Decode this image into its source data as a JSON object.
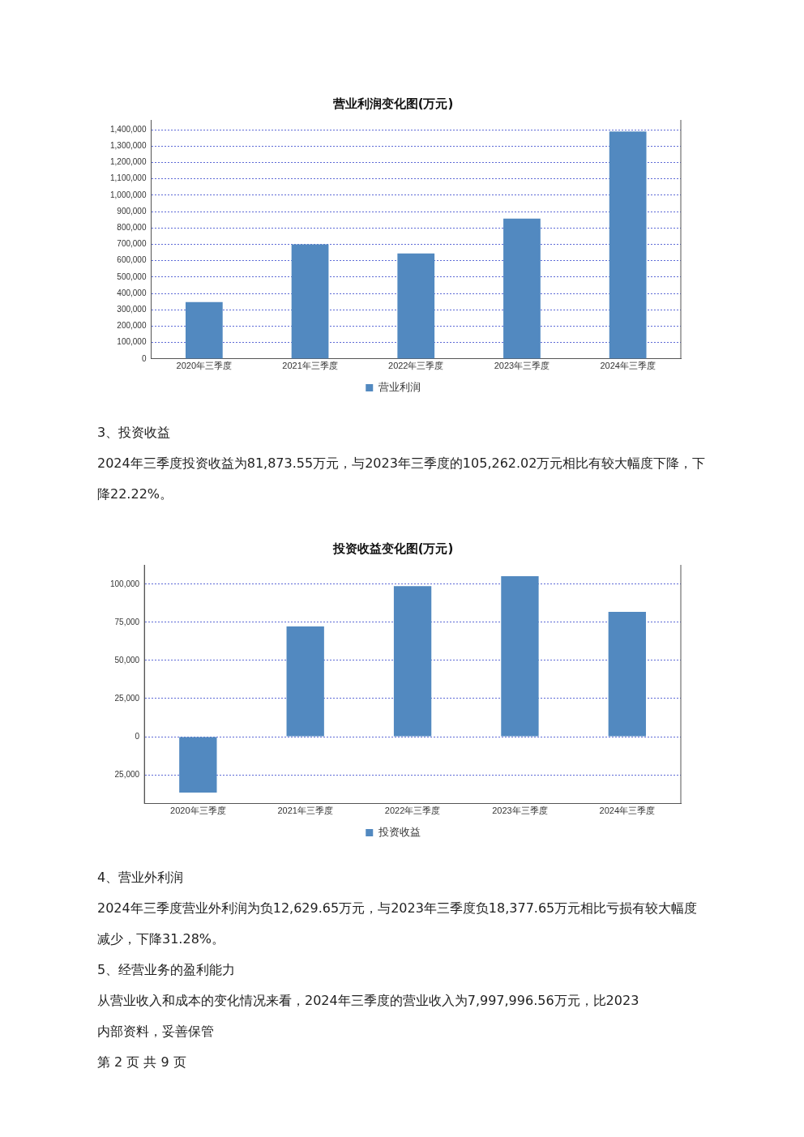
{
  "chart_data": [
    {
      "type": "bar",
      "title": "营业利润变化图(万元)",
      "categories": [
        "2020年三季度",
        "2021年三季度",
        "2022年三季度",
        "2023年三季度",
        "2024年三季度"
      ],
      "series": [
        {
          "name": "营业利润",
          "color": "#5289c0",
          "values": [
            347000,
            700000,
            644000,
            857000,
            1389000
          ]
        }
      ],
      "ylim": [
        0,
        1460000
      ],
      "yticks": [
        0,
        {
          "value": 100000,
          "label": "100,000"
        },
        {
          "value": 200000,
          "label": "200,000"
        },
        {
          "value": 300000,
          "label": "300,000"
        },
        {
          "value": 400000,
          "label": "400,000"
        },
        {
          "value": 500000,
          "label": "500,000"
        },
        {
          "value": 600000,
          "label": "600,000"
        },
        {
          "value": 700000,
          "label": "700,000"
        },
        {
          "value": 800000,
          "label": "800,000"
        },
        {
          "value": 900000,
          "label": "900,000"
        },
        {
          "value": 1000000,
          "label": "1,000,000"
        },
        {
          "value": 1100000,
          "label": "1,100,000"
        },
        {
          "value": 1200000,
          "label": "1,200,000"
        },
        {
          "value": 1300000,
          "label": "1,300,000"
        },
        {
          "value": 1400000,
          "label": "1,400,000"
        }
      ],
      "grid": "y",
      "legend": "bottom",
      "annotations": [
        "3、投资收益",
        "2024年三季度投资收益为81,873.55万元，与2023年三季度的105,262.02万元相比有较大幅度下降，下降22.22%。"
      ]
    },
    {
      "type": "bar",
      "title": "投资收益变化图(万元)",
      "categories": [
        "2020年三季度",
        "2021年三季度",
        "2022年三季度",
        "2023年三季度",
        "2024年三季度"
      ],
      "series": [
        {
          "name": "投资收益",
          "color": "#5289c0",
          "values": [
            -36700,
            72300,
            98800,
            105300,
            81900
          ]
        }
      ],
      "ylim": [
        -44000,
        112700
      ],
      "yticks": [
        {
          "value": -25000,
          "label": "25,000"
        },
        0,
        {
          "value": 25000,
          "label": "25,000"
        },
        {
          "value": 50000,
          "label": "50,000"
        },
        {
          "value": 75000,
          "label": "75,000"
        },
        {
          "value": 100000,
          "label": "100,000"
        }
      ],
      "grid": "y",
      "legend": "bottom",
      "annotations": [
        "4、营业外利润",
        "2024年三季度营业外利润为负12,629.65万元，与2023年三季度负18,377.65万元相比亏损有较大幅度减少，下降31.28%。",
        "5、经营业务的盈利能力",
        "从营业收入和成本的变化情况来看，2024年三季度的营业收入为7,997,996.56万元，比2023",
        "内部资料，妥善保管",
        "第 2 页  共 9 页"
      ]
    }
  ]
}
